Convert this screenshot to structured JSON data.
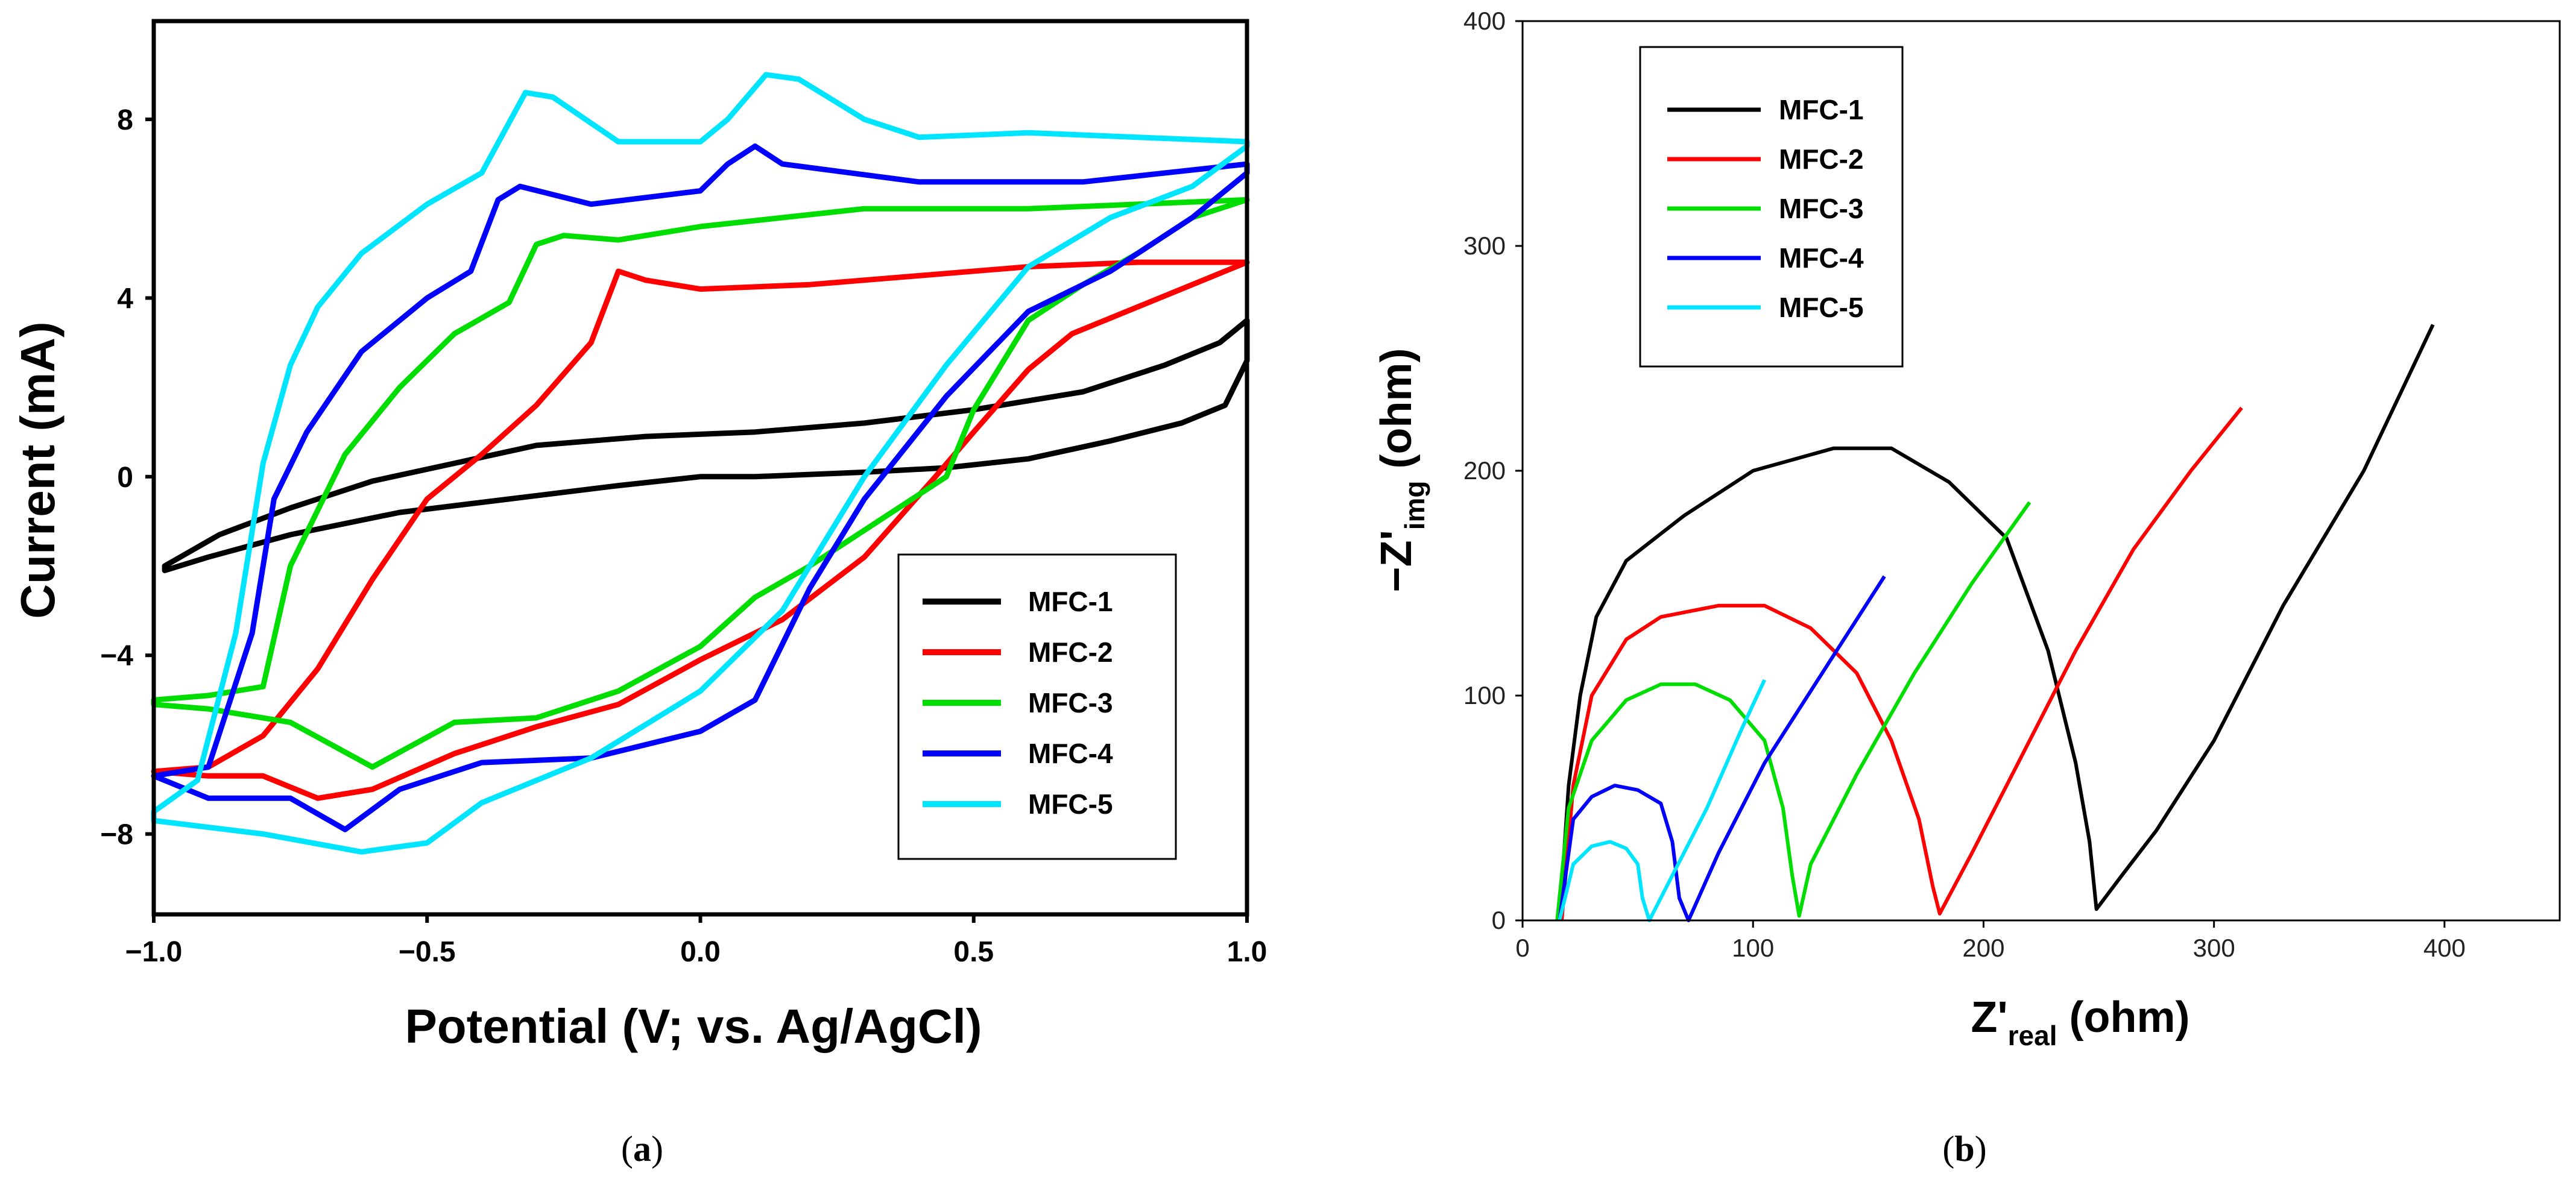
{
  "chart_data": [
    {
      "panel": "a",
      "panel_label": "a",
      "type": "line",
      "title": "",
      "xlabel": "Potential (V; vs. Ag/AgCl)",
      "ylabel": "Current (mA)",
      "xlim": [
        -1.0,
        1.0
      ],
      "ylim": [
        -9.8,
        10.2
      ],
      "xticks": [
        -1.0,
        -0.5,
        0.0,
        0.5,
        1.0
      ],
      "xtick_labels": [
        "−1.0",
        "−0.5",
        "0.0",
        "0.5",
        "1.0"
      ],
      "yticks": [
        -8,
        -4,
        0,
        4,
        8
      ],
      "ytick_labels": [
        "−8",
        "−4",
        "0",
        "4",
        "8"
      ],
      "legend_position": "bottom-right",
      "grid": false,
      "series": [
        {
          "name": "MFC-1",
          "color": "#000000",
          "x": [
            -0.98,
            -0.88,
            -0.75,
            -0.6,
            -0.45,
            -0.3,
            -0.1,
            0.1,
            0.3,
            0.5,
            0.7,
            0.85,
            0.95,
            1.0,
            1.0,
            0.96,
            0.88,
            0.75,
            0.6,
            0.45,
            0.3,
            0.1,
            0.0,
            -0.15,
            -0.35,
            -0.55,
            -0.75,
            -0.9,
            -0.98
          ],
          "y": [
            -2.0,
            -1.3,
            -0.7,
            -0.1,
            0.3,
            0.7,
            0.9,
            1.0,
            1.2,
            1.5,
            1.9,
            2.5,
            3.0,
            3.5,
            2.6,
            1.6,
            1.2,
            0.8,
            0.4,
            0.2,
            0.1,
            0.0,
            0.0,
            -0.2,
            -0.5,
            -0.8,
            -1.3,
            -1.8,
            -2.1
          ]
        },
        {
          "name": "MFC-2",
          "color": "#ff0000",
          "x": [
            -1.0,
            -0.9,
            -0.8,
            -0.7,
            -0.6,
            -0.5,
            -0.4,
            -0.3,
            -0.2,
            -0.15,
            -0.1,
            0.0,
            0.2,
            0.4,
            0.6,
            0.8,
            1.0,
            1.0,
            0.9,
            0.8,
            0.68,
            0.6,
            0.5,
            0.43,
            0.3,
            0.15,
            0.0,
            -0.15,
            -0.3,
            -0.45,
            -0.6,
            -0.7,
            -0.8,
            -0.9,
            -1.0
          ],
          "y": [
            -6.6,
            -6.5,
            -5.8,
            -4.3,
            -2.3,
            -0.5,
            0.5,
            1.6,
            3.0,
            4.6,
            4.4,
            4.2,
            4.3,
            4.5,
            4.7,
            4.8,
            4.8,
            4.8,
            4.3,
            3.8,
            3.2,
            2.4,
            1.0,
            0.0,
            -1.8,
            -3.2,
            -4.1,
            -5.1,
            -5.6,
            -6.2,
            -7.0,
            -7.2,
            -6.7,
            -6.7,
            -6.6
          ]
        },
        {
          "name": "MFC-3",
          "color": "#00dd00",
          "x": [
            -1.0,
            -0.9,
            -0.8,
            -0.75,
            -0.65,
            -0.55,
            -0.45,
            -0.35,
            -0.3,
            -0.25,
            -0.15,
            0.0,
            0.3,
            0.6,
            1.0,
            1.0,
            0.9,
            0.8,
            0.7,
            0.6,
            0.5,
            0.45,
            0.3,
            0.2,
            0.1,
            0.0,
            -0.15,
            -0.3,
            -0.45,
            -0.6,
            -0.75,
            -0.9,
            -1.0
          ],
          "y": [
            -5.0,
            -4.9,
            -4.7,
            -2.0,
            0.5,
            2.0,
            3.2,
            3.9,
            5.2,
            5.4,
            5.3,
            5.6,
            6.0,
            6.0,
            6.2,
            6.2,
            5.8,
            5.0,
            4.3,
            3.5,
            1.5,
            0.0,
            -1.2,
            -2.0,
            -2.7,
            -3.8,
            -4.8,
            -5.4,
            -5.5,
            -6.5,
            -5.5,
            -5.2,
            -5.1
          ]
        },
        {
          "name": "MFC-4",
          "color": "#0000ff",
          "x": [
            -1.0,
            -0.9,
            -0.82,
            -0.78,
            -0.72,
            -0.62,
            -0.5,
            -0.42,
            -0.37,
            -0.33,
            -0.2,
            0.0,
            0.05,
            0.1,
            0.15,
            0.4,
            0.7,
            1.0,
            1.0,
            0.9,
            0.75,
            0.6,
            0.45,
            0.3,
            0.2,
            0.1,
            0.0,
            -0.2,
            -0.4,
            -0.55,
            -0.65,
            -0.75,
            -0.9,
            -1.0
          ],
          "y": [
            -6.7,
            -6.5,
            -3.5,
            -0.5,
            1.0,
            2.8,
            4.0,
            4.6,
            6.2,
            6.5,
            6.1,
            6.4,
            7.0,
            7.4,
            7.0,
            6.6,
            6.6,
            7.0,
            6.8,
            5.8,
            4.6,
            3.7,
            1.8,
            -0.5,
            -2.5,
            -5.0,
            -5.7,
            -6.3,
            -6.4,
            -7.0,
            -7.9,
            -7.2,
            -7.2,
            -6.7
          ]
        },
        {
          "name": "MFC-5",
          "color": "#00e5ff",
          "x": [
            -1.0,
            -0.92,
            -0.85,
            -0.8,
            -0.75,
            -0.7,
            -0.62,
            -0.5,
            -0.4,
            -0.32,
            -0.27,
            -0.15,
            0.0,
            0.05,
            0.12,
            0.18,
            0.3,
            0.4,
            0.6,
            0.8,
            1.0,
            1.0,
            0.9,
            0.75,
            0.6,
            0.45,
            0.3,
            0.15,
            0.0,
            -0.2,
            -0.4,
            -0.5,
            -0.62,
            -0.8,
            -1.0
          ],
          "y": [
            -7.5,
            -6.8,
            -3.5,
            0.3,
            2.5,
            3.8,
            5.0,
            6.1,
            6.8,
            8.6,
            8.5,
            7.5,
            7.5,
            8.0,
            9.0,
            8.9,
            8.0,
            7.6,
            7.7,
            7.6,
            7.5,
            7.4,
            6.5,
            5.8,
            4.7,
            2.5,
            0.0,
            -3.0,
            -4.8,
            -6.3,
            -7.3,
            -8.2,
            -8.4,
            -8.0,
            -7.7
          ]
        }
      ]
    },
    {
      "panel": "b",
      "panel_label": "b",
      "type": "line",
      "title": "",
      "xlabel": "Z'real (ohm)",
      "xlabel_main": "Z'",
      "xlabel_sub": "real",
      "xlabel_unit": " (ohm)",
      "ylabel": "−Z'img (ohm)",
      "ylabel_main": "−Z'",
      "ylabel_sub": "img",
      "ylabel_unit": " (ohm)",
      "xlim": [
        0,
        450
      ],
      "ylim": [
        0,
        400
      ],
      "xticks": [
        0,
        100,
        200,
        300,
        400
      ],
      "xtick_labels": [
        "0",
        "100",
        "200",
        "300",
        "400"
      ],
      "yticks": [
        0,
        100,
        200,
        300,
        400
      ],
      "ytick_labels": [
        "0",
        "100",
        "200",
        "300",
        "400"
      ],
      "legend_position": "top-left",
      "grid": false,
      "series": [
        {
          "name": "MFC-1",
          "color": "#000000",
          "x": [
            16,
            20,
            25,
            32,
            45,
            70,
            100,
            135,
            160,
            185,
            210,
            228,
            240,
            246,
            249,
            260,
            275,
            300,
            330,
            365,
            395
          ],
          "y": [
            0,
            60,
            100,
            135,
            160,
            180,
            200,
            210,
            210,
            195,
            170,
            120,
            70,
            35,
            5,
            20,
            40,
            80,
            140,
            200,
            265
          ]
        },
        {
          "name": "MFC-2",
          "color": "#ff0000",
          "x": [
            17,
            22,
            30,
            45,
            60,
            85,
            105,
            125,
            145,
            160,
            172,
            178,
            181,
            195,
            215,
            240,
            265,
            290,
            312
          ],
          "y": [
            0,
            60,
            100,
            125,
            135,
            140,
            140,
            130,
            110,
            80,
            45,
            15,
            3,
            30,
            70,
            120,
            165,
            200,
            228
          ]
        },
        {
          "name": "MFC-3",
          "color": "#00dd00",
          "x": [
            15,
            20,
            30,
            45,
            60,
            75,
            90,
            105,
            113,
            117,
            120,
            125,
            145,
            170,
            195,
            220
          ],
          "y": [
            0,
            50,
            80,
            98,
            105,
            105,
            98,
            80,
            50,
            20,
            2,
            25,
            65,
            110,
            150,
            186
          ]
        },
        {
          "name": "MFC-4",
          "color": "#0000ff",
          "x": [
            16,
            22,
            30,
            40,
            50,
            60,
            65,
            68,
            72,
            85,
            105,
            130,
            157
          ],
          "y": [
            0,
            45,
            55,
            60,
            58,
            52,
            35,
            10,
            0,
            30,
            70,
            110,
            153
          ]
        },
        {
          "name": "MFC-5",
          "color": "#00e5ff",
          "x": [
            16,
            22,
            30,
            38,
            45,
            50,
            52,
            55,
            65,
            80,
            95,
            105
          ],
          "y": [
            0,
            25,
            33,
            35,
            32,
            25,
            10,
            0,
            20,
            50,
            85,
            107
          ]
        }
      ]
    }
  ]
}
